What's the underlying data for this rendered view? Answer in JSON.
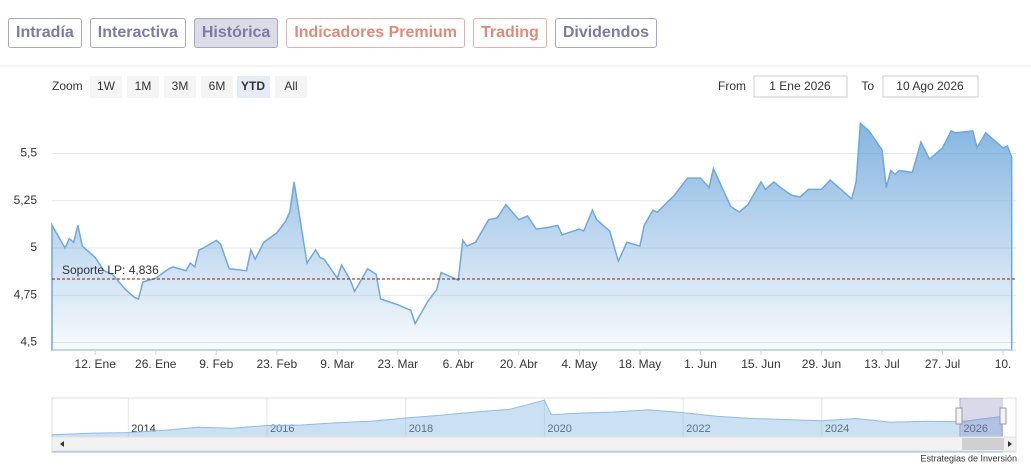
{
  "tabs": [
    "Intradía",
    "Interactiva",
    "Histórica",
    "Indicadores Premium",
    "Trading",
    "Dividendos"
  ],
  "zoom": {
    "label": "Zoom",
    "buttons": [
      "1W",
      "1M",
      "3M",
      "6M",
      "YTD",
      "All"
    ]
  },
  "range": {
    "from_label": "From",
    "from": "1 Ene 2026",
    "to_label": "To",
    "to": "10 Ago 2026"
  },
  "credit": "Estrategias de Inversión",
  "chart_data": [
    {
      "type": "area",
      "color": "#6fa8dc",
      "x": [
        "2026-01-02",
        "2026-01-05",
        "2026-01-06",
        "2026-01-07",
        "2026-01-08",
        "2026-01-09",
        "2026-01-12",
        "2026-01-14",
        "2026-01-16",
        "2026-01-19",
        "2026-01-21",
        "2026-01-22",
        "2026-01-23",
        "2026-01-26",
        "2026-01-29",
        "2026-01-30",
        "2026-02-02",
        "2026-02-03",
        "2026-02-04",
        "2026-02-05",
        "2026-02-06",
        "2026-02-09",
        "2026-02-10",
        "2026-02-12",
        "2026-02-16",
        "2026-02-17",
        "2026-02-18",
        "2026-02-20",
        "2026-02-23",
        "2026-02-25",
        "2026-02-26",
        "2026-02-27",
        "2026-03-02",
        "2026-03-04",
        "2026-03-05",
        "2026-03-06",
        "2026-03-09",
        "2026-03-10",
        "2026-03-12",
        "2026-03-13",
        "2026-03-16",
        "2026-03-18",
        "2026-03-19",
        "2026-03-23",
        "2026-03-26",
        "2026-03-27",
        "2026-03-30",
        "2026-04-01",
        "2026-04-02",
        "2026-04-06",
        "2026-04-07",
        "2026-04-08",
        "2026-04-10",
        "2026-04-13",
        "2026-04-15",
        "2026-04-17",
        "2026-04-20",
        "2026-04-22",
        "2026-04-24",
        "2026-04-27",
        "2026-04-29",
        "2026-04-30",
        "2026-05-04",
        "2026-05-05",
        "2026-05-07",
        "2026-05-08",
        "2026-05-11",
        "2026-05-13",
        "2026-05-15",
        "2026-05-18",
        "2026-05-19",
        "2026-05-21",
        "2026-05-22",
        "2026-05-26",
        "2026-05-29",
        "2026-06-01",
        "2026-06-03",
        "2026-06-04",
        "2026-06-08",
        "2026-06-10",
        "2026-06-12",
        "2026-06-15",
        "2026-06-16",
        "2026-06-18",
        "2026-06-19",
        "2026-06-22",
        "2026-06-24",
        "2026-06-26",
        "2026-06-29",
        "2026-07-01",
        "2026-07-03",
        "2026-07-06",
        "2026-07-07",
        "2026-07-08",
        "2026-07-10",
        "2026-07-13",
        "2026-07-14",
        "2026-07-15",
        "2026-07-16",
        "2026-07-17",
        "2026-07-20",
        "2026-07-22",
        "2026-07-24",
        "2026-07-27",
        "2026-07-29",
        "2026-07-30",
        "2026-08-03",
        "2026-08-04",
        "2026-08-06",
        "2026-08-10",
        "2026-08-11",
        "2026-08-12"
      ],
      "values": [
        5.12,
        5.0,
        5.05,
        5.03,
        5.12,
        5.01,
        4.95,
        4.88,
        4.86,
        4.78,
        4.74,
        4.73,
        4.82,
        4.84,
        4.89,
        4.9,
        4.88,
        4.92,
        4.9,
        4.99,
        5.0,
        5.04,
        5.02,
        4.89,
        4.88,
        4.99,
        4.94,
        5.03,
        5.08,
        5.14,
        5.19,
        5.35,
        4.92,
        4.99,
        4.95,
        4.94,
        4.84,
        4.91,
        4.83,
        4.77,
        4.89,
        4.86,
        4.73,
        4.7,
        4.67,
        4.6,
        4.72,
        4.78,
        4.87,
        4.83,
        5.04,
        5.01,
        5.03,
        5.15,
        5.16,
        5.23,
        5.15,
        5.17,
        5.1,
        5.11,
        5.12,
        5.07,
        5.1,
        5.09,
        5.2,
        5.15,
        5.09,
        4.93,
        5.03,
        5.01,
        5.12,
        5.2,
        5.19,
        5.28,
        5.37,
        5.37,
        5.32,
        5.42,
        5.22,
        5.19,
        5.23,
        5.35,
        5.31,
        5.35,
        5.33,
        5.28,
        5.27,
        5.31,
        5.31,
        5.36,
        5.32,
        5.26,
        5.35,
        5.66,
        5.62,
        5.52,
        5.32,
        5.41,
        5.39,
        5.41,
        5.4,
        5.56,
        5.47,
        5.53,
        5.62,
        5.61,
        5.62,
        5.53,
        5.61,
        5.53,
        5.54,
        5.48
      ],
      "xlim": [
        "2026-01-02",
        "2026-08-13"
      ],
      "xticks": [
        {
          "value": "2026-01-12",
          "label": "12. Ene"
        },
        {
          "value": "2026-01-26",
          "label": "26. Ene"
        },
        {
          "value": "2026-02-09",
          "label": "9. Feb"
        },
        {
          "value": "2026-02-23",
          "label": "23. Feb"
        },
        {
          "value": "2026-03-09",
          "label": "9. Mar"
        },
        {
          "value": "2026-03-23",
          "label": "23. Mar"
        },
        {
          "value": "2026-04-06",
          "label": "6. Abr"
        },
        {
          "value": "2026-04-20",
          "label": "20. Abr"
        },
        {
          "value": "2026-05-04",
          "label": "4. May"
        },
        {
          "value": "2026-05-18",
          "label": "18. May"
        },
        {
          "value": "2026-06-01",
          "label": "1. Jun"
        },
        {
          "value": "2026-06-15",
          "label": "15. Jun"
        },
        {
          "value": "2026-06-29",
          "label": "29. Jun"
        },
        {
          "value": "2026-07-13",
          "label": "13. Jul"
        },
        {
          "value": "2026-07-27",
          "label": "27. Jul"
        },
        {
          "value": "2026-08-10",
          "label": "10."
        }
      ],
      "ylim": [
        4.46,
        5.72
      ],
      "yticks": [
        {
          "value": 4.5,
          "label": "4,5"
        },
        {
          "value": 4.75,
          "label": "4,75"
        },
        5,
        {
          "value": 5.25,
          "label": "5,25"
        },
        {
          "value": 5.5,
          "label": "5,5"
        }
      ],
      "grid": true,
      "support": {
        "label": "Soporte LP: 4,836",
        "value": 4.836,
        "color": "#8b1a1a"
      }
    },
    {
      "type": "area",
      "color": "#8fbbe6",
      "x": [
        2012.9,
        2013.5,
        2014,
        2014.5,
        2015,
        2015.5,
        2016,
        2016.5,
        2017,
        2017.5,
        2018,
        2018.5,
        2019,
        2019.5,
        2020,
        2020.1,
        2020.5,
        2021,
        2021.5,
        2022,
        2022.5,
        2023,
        2023.5,
        2024,
        2024.5,
        2025,
        2025.5,
        2026,
        2026.6
      ],
      "values": [
        3.2,
        3.5,
        3.6,
        4.0,
        4.6,
        4.4,
        4.9,
        5.0,
        5.4,
        5.7,
        6.3,
        6.8,
        7.4,
        7.9,
        9.6,
        6.9,
        7.2,
        7.4,
        7.8,
        7.3,
        6.6,
        6.2,
        6.0,
        5.8,
        6.2,
        5.5,
        5.7,
        5.6,
        6.6
      ],
      "xlim": [
        2012.9,
        2026.8
      ],
      "xticks": [
        2014,
        2016,
        2018,
        2020,
        2022,
        2024,
        2026
      ],
      "ylim": [
        0,
        10
      ]
    }
  ]
}
